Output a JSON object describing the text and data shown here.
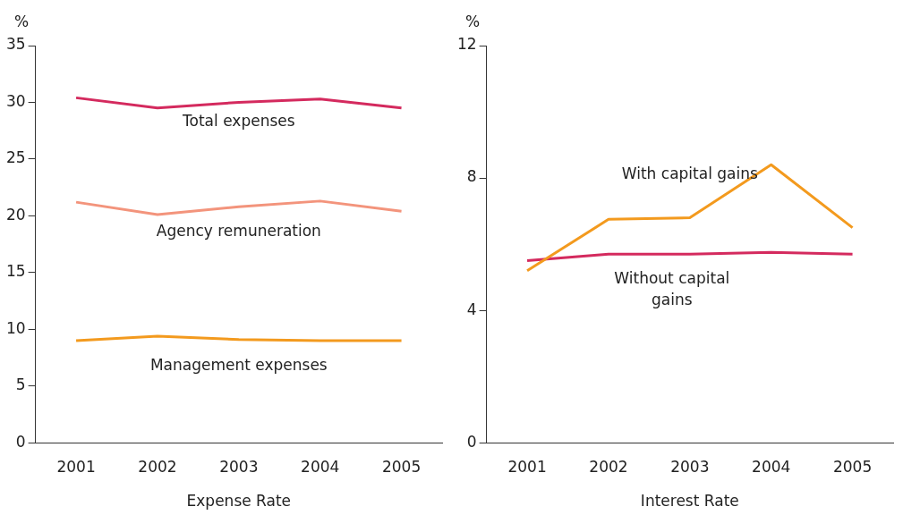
{
  "chart_data": [
    {
      "type": "line",
      "xlabel": "Expense Rate",
      "ylabel": "%",
      "categories": [
        "2001",
        "2002",
        "2003",
        "2004",
        "2005"
      ],
      "ylim": [
        0,
        35
      ],
      "yticks": [
        0,
        5,
        10,
        15,
        20,
        25,
        30,
        35
      ],
      "grid": false,
      "legend": false,
      "marker": "none",
      "series": [
        {
          "name": "Total expenses",
          "color": "#d42a5e",
          "values": [
            30.4,
            29.5,
            30.0,
            30.3,
            29.5
          ]
        },
        {
          "name": "Agency remuneration",
          "color": "#f3947c",
          "values": [
            21.2,
            20.1,
            20.8,
            21.3,
            20.4
          ]
        },
        {
          "name": "Management expenses",
          "color": "#f39a1e",
          "values": [
            9.0,
            9.4,
            9.1,
            9.0,
            9.0
          ]
        }
      ]
    },
    {
      "type": "line",
      "xlabel": "Interest Rate",
      "ylabel": "%",
      "categories": [
        "2001",
        "2002",
        "2003",
        "2004",
        "2005"
      ],
      "ylim": [
        0,
        12
      ],
      "yticks": [
        0,
        4,
        8,
        12
      ],
      "grid": false,
      "legend": false,
      "marker": "none",
      "series": [
        {
          "name": "With capital gains",
          "color": "#f39a1e",
          "values": [
            5.2,
            6.75,
            6.8,
            8.4,
            6.5
          ]
        },
        {
          "name": "Without capital gains",
          "color": "#d42a5e",
          "values": [
            5.5,
            5.7,
            5.7,
            5.75,
            5.7
          ]
        }
      ]
    }
  ]
}
